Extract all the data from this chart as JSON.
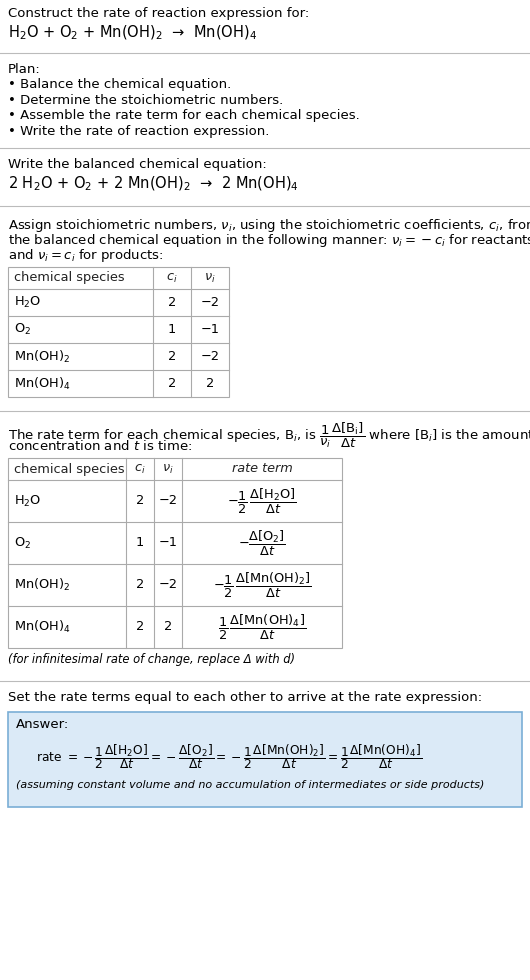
{
  "bg_color": "#ffffff",
  "text_color": "#000000",
  "answer_bg": "#dbeaf7",
  "title_line1": "Construct the rate of reaction expression for:",
  "title_line2": "H$_2$O + O$_2$ + Mn(OH)$_2$  →  Mn(OH)$_4$",
  "plan_header": "Plan:",
  "plan_items": [
    "• Balance the chemical equation.",
    "• Determine the stoichiometric numbers.",
    "• Assemble the rate term for each chemical species.",
    "• Write the rate of reaction expression."
  ],
  "balanced_header": "Write the balanced chemical equation:",
  "balanced_eq": "2 H$_2$O + O$_2$ + 2 Mn(OH)$_2$  →  2 Mn(OH)$_4$",
  "assign_text1": "Assign stoichiometric numbers, $\\nu_i$, using the stoichiometric coefficients, $c_i$, from",
  "assign_text2": "the balanced chemical equation in the following manner: $\\nu_i = -c_i$ for reactants",
  "assign_text3": "and $\\nu_i = c_i$ for products:",
  "table1_headers": [
    "chemical species",
    "$c_i$",
    "$\\nu_i$"
  ],
  "table1_rows": [
    [
      "H$_2$O",
      "2",
      "−2"
    ],
    [
      "O$_2$",
      "1",
      "−1"
    ],
    [
      "Mn(OH)$_2$",
      "2",
      "−2"
    ],
    [
      "Mn(OH)$_4$",
      "2",
      "2"
    ]
  ],
  "rate_text1": "The rate term for each chemical species, B$_i$, is $\\dfrac{1}{\\nu_i}\\dfrac{\\Delta[\\mathrm{B_i}]}{\\Delta t}$ where [B$_i$] is the amount",
  "rate_text2": "concentration and $t$ is time:",
  "table2_headers": [
    "chemical species",
    "$c_i$",
    "$\\nu_i$",
    "rate term"
  ],
  "table2_rows": [
    [
      "H$_2$O",
      "2",
      "−2",
      "$-\\dfrac{1}{2}\\,\\dfrac{\\Delta[\\mathrm{H_2O}]}{\\Delta t}$"
    ],
    [
      "O$_2$",
      "1",
      "−1",
      "$-\\dfrac{\\Delta[\\mathrm{O_2}]}{\\Delta t}$"
    ],
    [
      "Mn(OH)$_2$",
      "2",
      "−2",
      "$-\\dfrac{1}{2}\\,\\dfrac{\\Delta[\\mathrm{Mn(OH)_2}]}{\\Delta t}$"
    ],
    [
      "Mn(OH)$_4$",
      "2",
      "2",
      "$\\dfrac{1}{2}\\,\\dfrac{\\Delta[\\mathrm{Mn(OH)_4}]}{\\Delta t}$"
    ]
  ],
  "infinitesimal_note": "(for infinitesimal rate of change, replace Δ with d)",
  "set_text": "Set the rate terms equal to each other to arrive at the rate expression:",
  "answer_label": "Answer:",
  "rate_expr_parts": [
    "rate $= -\\dfrac{1}{2}\\dfrac{\\Delta[\\mathrm{H_2O}]}{\\Delta t} = -\\dfrac{\\Delta[\\mathrm{O_2}]}{\\Delta t} = -\\dfrac{1}{2}\\dfrac{\\Delta[\\mathrm{Mn(OH)_2}]}{\\Delta t} = \\dfrac{1}{2}\\dfrac{\\Delta[\\mathrm{Mn(OH)_4}]}{\\Delta t}$"
  ],
  "footer_note": "(assuming constant volume and no accumulation of intermediates or side products)",
  "figw": 5.3,
  "figh": 9.8,
  "dpi": 100
}
